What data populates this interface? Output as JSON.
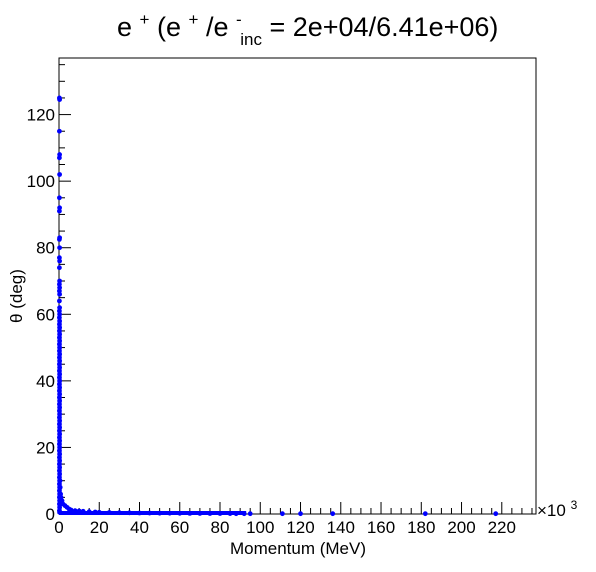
{
  "chart_data": {
    "type": "scatter",
    "title": {
      "base": "e",
      "sup1": "+",
      "mid": " (e",
      "sup2": "+",
      "slash": "/e",
      "sup3": "-",
      "sub": "inc",
      "tail": " = 2e+04/6.41e+06)"
    },
    "xlabel": "Momentum (MeV)",
    "ylabel": "θ (deg)",
    "x_exponent_base": "×10",
    "x_exponent_power": "3",
    "xlim": [
      0,
      237
    ],
    "ylim": [
      0,
      137
    ],
    "x_ticks": [
      0,
      20,
      40,
      60,
      80,
      100,
      120,
      140,
      160,
      180,
      200,
      220
    ],
    "y_ticks": [
      0,
      20,
      40,
      60,
      80,
      100,
      120
    ],
    "grid": false,
    "marker_color": "#0000ff",
    "series": [
      {
        "points": [
          [
            0.2,
            125
          ],
          [
            0.3,
            124.5
          ],
          [
            0.2,
            115
          ],
          [
            0.3,
            108
          ],
          [
            0.2,
            107
          ],
          [
            0.3,
            102
          ],
          [
            0.2,
            95
          ],
          [
            0.3,
            92
          ],
          [
            0.2,
            91
          ],
          [
            0.3,
            83
          ],
          [
            0.2,
            82.5
          ],
          [
            0.3,
            80
          ],
          [
            0.2,
            77
          ],
          [
            0.3,
            76
          ],
          [
            0.2,
            74
          ],
          [
            0.3,
            70
          ],
          [
            0.2,
            69
          ],
          [
            0.3,
            68
          ],
          [
            0.2,
            67
          ],
          [
            0.3,
            66
          ],
          [
            0.2,
            64
          ],
          [
            0.3,
            62
          ],
          [
            0.2,
            61
          ],
          [
            0.3,
            60
          ],
          [
            0.2,
            59
          ],
          [
            0.3,
            58
          ],
          [
            0.2,
            57
          ],
          [
            0.3,
            56
          ],
          [
            0.2,
            55
          ],
          [
            0.3,
            54
          ],
          [
            0.2,
            53
          ],
          [
            0.3,
            52
          ],
          [
            0.2,
            51
          ],
          [
            0.3,
            50
          ],
          [
            0.2,
            49
          ],
          [
            0.3,
            48
          ],
          [
            0.2,
            47
          ],
          [
            0.3,
            46
          ],
          [
            0.2,
            45
          ],
          [
            0.3,
            44
          ],
          [
            0.2,
            43
          ],
          [
            0.3,
            42
          ],
          [
            0.2,
            41
          ],
          [
            0.3,
            40
          ],
          [
            0.2,
            39
          ],
          [
            0.3,
            38
          ],
          [
            0.2,
            37
          ],
          [
            0.3,
            36
          ],
          [
            0.2,
            35
          ],
          [
            0.3,
            34
          ],
          [
            0.2,
            33
          ],
          [
            0.3,
            32
          ],
          [
            0.2,
            31
          ],
          [
            0.3,
            30
          ],
          [
            0.2,
            29
          ],
          [
            0.3,
            28
          ],
          [
            0.2,
            27
          ],
          [
            0.3,
            26
          ],
          [
            0.2,
            25
          ],
          [
            0.3,
            24
          ],
          [
            0.2,
            23
          ],
          [
            0.3,
            22
          ],
          [
            0.2,
            21
          ],
          [
            0.3,
            20
          ],
          [
            0.2,
            19
          ],
          [
            0.3,
            18
          ],
          [
            0.2,
            17
          ],
          [
            0.3,
            16
          ],
          [
            0.2,
            15
          ],
          [
            0.3,
            14
          ],
          [
            0.2,
            13
          ],
          [
            0.3,
            12
          ],
          [
            0.2,
            11
          ],
          [
            0.3,
            10
          ],
          [
            0.2,
            9
          ],
          [
            0.3,
            8
          ],
          [
            0.2,
            7
          ],
          [
            0.3,
            6
          ],
          [
            0.2,
            5
          ],
          [
            0.3,
            4
          ],
          [
            0.2,
            3
          ],
          [
            0.3,
            2
          ],
          [
            0.2,
            1
          ],
          [
            0.3,
            0.5
          ],
          [
            0.5,
            10
          ],
          [
            0.6,
            8
          ],
          [
            0.8,
            6
          ],
          [
            1.0,
            5
          ],
          [
            1.5,
            4
          ],
          [
            2,
            3
          ],
          [
            3,
            2.5
          ],
          [
            4,
            2
          ],
          [
            5,
            1.5
          ],
          [
            6,
            1.2
          ],
          [
            8,
            1
          ],
          [
            10,
            0.9
          ],
          [
            12,
            0.8
          ],
          [
            15,
            0.7
          ],
          [
            18,
            0.6
          ],
          [
            20,
            0.5
          ],
          [
            25,
            0.45
          ],
          [
            30,
            0.4
          ],
          [
            35,
            0.35
          ],
          [
            40,
            0.3
          ],
          [
            45,
            0.28
          ],
          [
            50,
            0.25
          ],
          [
            55,
            0.23
          ],
          [
            60,
            0.2
          ],
          [
            65,
            0.18
          ],
          [
            70,
            0.16
          ],
          [
            75,
            0.15
          ],
          [
            80,
            0.14
          ],
          [
            85,
            0.12
          ],
          [
            88,
            0.1
          ],
          [
            92,
            0.1
          ],
          [
            95,
            0.1
          ],
          [
            111,
            0.1
          ],
          [
            120,
            0.1
          ],
          [
            136,
            0.1
          ],
          [
            182,
            0.1
          ],
          [
            217,
            0.1
          ]
        ]
      }
    ]
  }
}
